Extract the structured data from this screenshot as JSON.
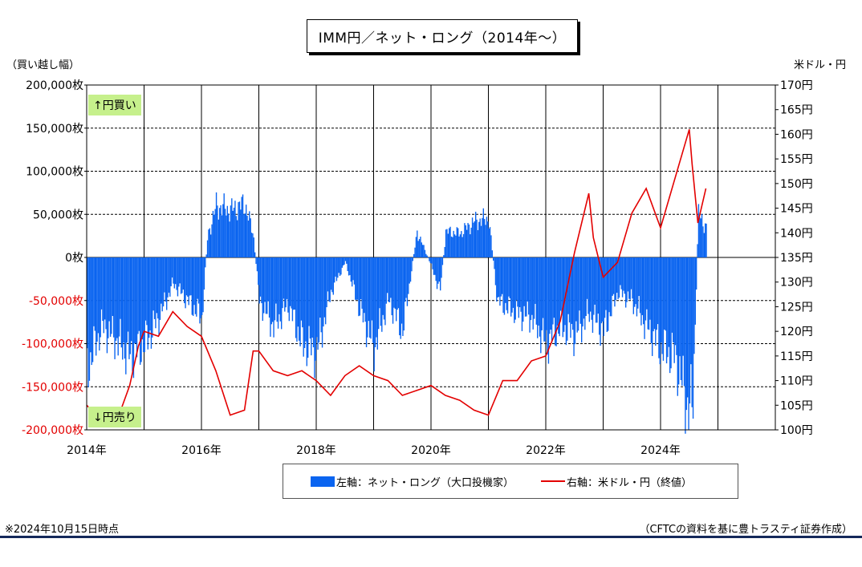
{
  "title": "IMM円／ネット・ロング（2014年～）",
  "left_unit": "（買い越し幅）",
  "right_unit": "米ドル・円",
  "badges": {
    "buy": "↑円買い",
    "sell": "↓円売り"
  },
  "legend": {
    "bar": "左軸：ネット・ロング（大口投機家）",
    "line": "右軸：米ドル・円（終値）"
  },
  "footnote": "※2024年10月15日時点",
  "source": "（CFTCの資料を基に豊トラスティ証券作成）",
  "colors": {
    "bar": "#0a64f0",
    "line": "#e30000",
    "negative_tick": "#e30000"
  },
  "chart_data": {
    "type": "bar+line",
    "title": "IMM円／ネット・ロング（2014年～）",
    "x_tick_labels": [
      "2014年",
      "2016年",
      "2018年",
      "2020年",
      "2022年",
      "2024年"
    ],
    "xlim": [
      2014.0,
      2026.0
    ],
    "left_axis": {
      "ylim": [
        -200000,
        200000
      ],
      "tick_values": [
        200000,
        150000,
        100000,
        50000,
        0,
        -50000,
        -100000,
        -150000,
        -200000
      ],
      "tick_labels": [
        "200,000枚",
        "150,000枚",
        "100,000枚",
        "50,000枚",
        "0枚",
        "-50,000枚",
        "-100,000枚",
        "-150,000枚",
        "-200,000枚"
      ]
    },
    "right_axis": {
      "ylim": [
        100,
        170
      ],
      "tick_values": [
        170,
        165,
        160,
        155,
        150,
        145,
        140,
        135,
        130,
        125,
        120,
        115,
        110,
        105,
        100
      ],
      "tick_labels": [
        "170円",
        "165円",
        "160円",
        "155円",
        "150円",
        "145円",
        "140円",
        "135円",
        "130円",
        "125円",
        "120円",
        "115円",
        "110円",
        "105円",
        "100円"
      ]
    },
    "series": [
      {
        "name": "左軸：ネット・ロング（大口投機家）",
        "axis": "left",
        "type": "bar",
        "x": [
          2014.0,
          2014.25,
          2014.5,
          2014.75,
          2015.0,
          2015.25,
          2015.5,
          2015.75,
          2016.0,
          2016.1,
          2016.25,
          2016.5,
          2016.75,
          2016.9,
          2017.0,
          2017.25,
          2017.5,
          2017.75,
          2018.0,
          2018.25,
          2018.5,
          2018.75,
          2019.0,
          2019.25,
          2019.5,
          2019.75,
          2020.0,
          2020.15,
          2020.25,
          2020.5,
          2020.75,
          2021.0,
          2021.15,
          2021.25,
          2021.5,
          2021.75,
          2022.0,
          2022.25,
          2022.5,
          2022.75,
          2023.0,
          2023.25,
          2023.5,
          2023.75,
          2024.0,
          2024.25,
          2024.45,
          2024.55,
          2024.65,
          2024.79
        ],
        "values": [
          -130000,
          -80000,
          -95000,
          -115000,
          -100000,
          -70000,
          -30000,
          -50000,
          -70000,
          25000,
          60000,
          55000,
          62000,
          25000,
          -50000,
          -80000,
          -55000,
          -100000,
          -110000,
          -40000,
          -5000,
          -60000,
          -105000,
          -50000,
          -85000,
          30000,
          -10000,
          -40000,
          30000,
          28000,
          42000,
          45000,
          -50000,
          -55000,
          -65000,
          -70000,
          -100000,
          -80000,
          -90000,
          -65000,
          -85000,
          -40000,
          -50000,
          -80000,
          -105000,
          -115000,
          -170000,
          -180000,
          50000,
          35000
        ]
      },
      {
        "name": "右軸：米ドル・円（終値）",
        "axis": "right",
        "type": "line",
        "x": [
          2014.0,
          2014.25,
          2014.5,
          2014.75,
          2014.9,
          2015.0,
          2015.25,
          2015.5,
          2015.75,
          2016.0,
          2016.25,
          2016.5,
          2016.75,
          2016.9,
          2017.0,
          2017.25,
          2017.5,
          2017.75,
          2018.0,
          2018.25,
          2018.5,
          2018.75,
          2019.0,
          2019.25,
          2019.5,
          2019.75,
          2020.0,
          2020.25,
          2020.5,
          2020.75,
          2021.0,
          2021.25,
          2021.5,
          2021.75,
          2022.0,
          2022.25,
          2022.5,
          2022.75,
          2022.83,
          2023.0,
          2023.25,
          2023.5,
          2023.75,
          2024.0,
          2024.25,
          2024.5,
          2024.55,
          2024.65,
          2024.79
        ],
        "values": [
          105,
          102,
          101,
          109,
          117,
          120,
          119,
          124,
          121,
          119,
          112,
          103,
          104,
          116,
          116,
          112,
          111,
          112,
          110,
          107,
          111,
          113,
          111,
          110,
          107,
          108,
          109,
          107,
          106,
          104,
          103,
          110,
          110,
          114,
          115,
          122,
          136,
          148,
          139,
          131,
          134,
          144,
          149,
          141,
          151,
          161,
          154,
          142,
          149
        ]
      }
    ]
  }
}
